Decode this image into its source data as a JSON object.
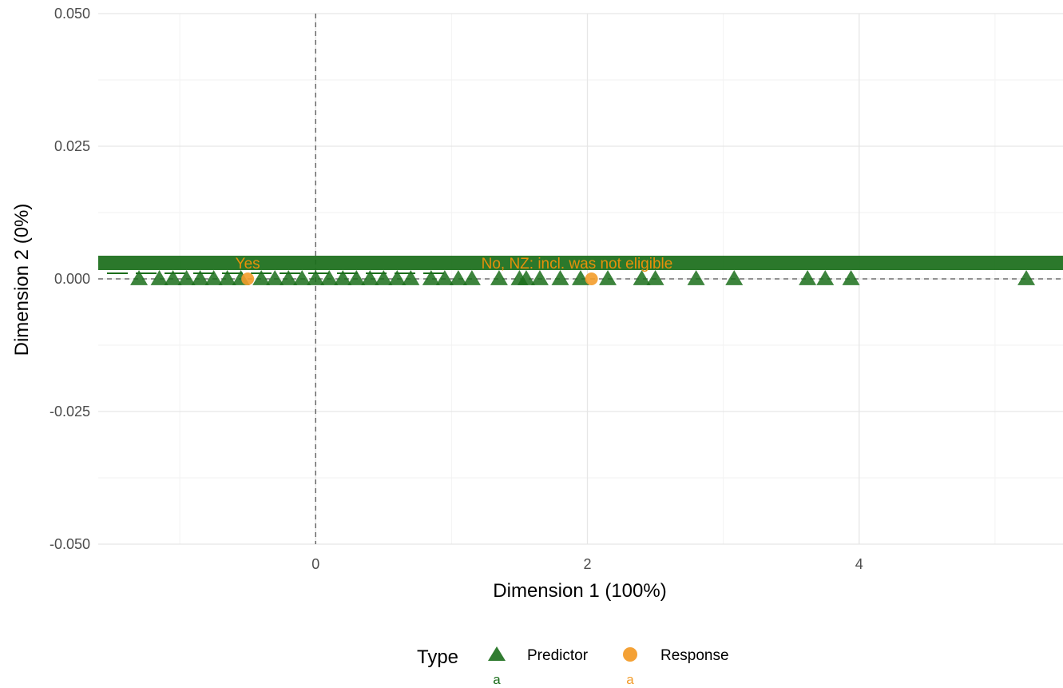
{
  "chart_data": {
    "type": "scatter",
    "title": "",
    "xlabel": "Dimension 1 (100%)",
    "ylabel": "Dimension 2 (0%)",
    "xlim": [
      -1.6,
      5.5
    ],
    "ylim": [
      -0.05,
      0.05
    ],
    "x_ticks": [
      0,
      2,
      4
    ],
    "y_ticks": [
      0.05,
      0.025,
      0.0,
      -0.025,
      -0.05
    ],
    "x_tick_labels": [
      "0",
      "2",
      "4"
    ],
    "y_tick_labels": [
      "0.050",
      "0.025",
      "0.000",
      "-0.025",
      "-0.050"
    ],
    "reference_lines": {
      "x": 0,
      "y": 0,
      "style": "dashed"
    },
    "grid": true,
    "legend": {
      "title": "Type",
      "position": "bottom",
      "key_text": "a"
    },
    "series": [
      {
        "name": "Predictor",
        "marker": "triangle",
        "color": "#1b6e1b",
        "x": [
          -1.3,
          -1.15,
          -1.05,
          -0.95,
          -0.85,
          -0.75,
          -0.65,
          -0.55,
          -0.4,
          -0.3,
          -0.2,
          -0.1,
          0.0,
          0.1,
          0.2,
          0.3,
          0.4,
          0.5,
          0.6,
          0.7,
          0.85,
          0.95,
          1.05,
          1.15,
          1.35,
          1.5,
          1.55,
          1.65,
          1.8,
          1.95,
          2.15,
          2.4,
          2.5,
          2.8,
          3.08,
          3.62,
          3.75,
          3.94,
          5.23
        ],
        "y": [
          0.0,
          0.0,
          0.0,
          0.0,
          0.0,
          0.0,
          0.0,
          0.0,
          0.0,
          0.0,
          0.0,
          0.0,
          0.0,
          0.0,
          0.0,
          0.0,
          0.0,
          0.0,
          0.0,
          0.0,
          0.0,
          0.0,
          0.0,
          0.0,
          0.0,
          0.0,
          0.0,
          0.0,
          0.0,
          0.0,
          0.0,
          0.0,
          0.0,
          0.0,
          0.0,
          0.0,
          0.0,
          0.0,
          0.0
        ]
      },
      {
        "name": "Response",
        "marker": "circle",
        "color": "#f39c2a",
        "x": [
          -0.5,
          2.03
        ],
        "y": [
          0.0,
          0.0
        ],
        "labels": [
          "Yes",
          "No, NZ: incl. was not eligible"
        ]
      }
    ]
  }
}
